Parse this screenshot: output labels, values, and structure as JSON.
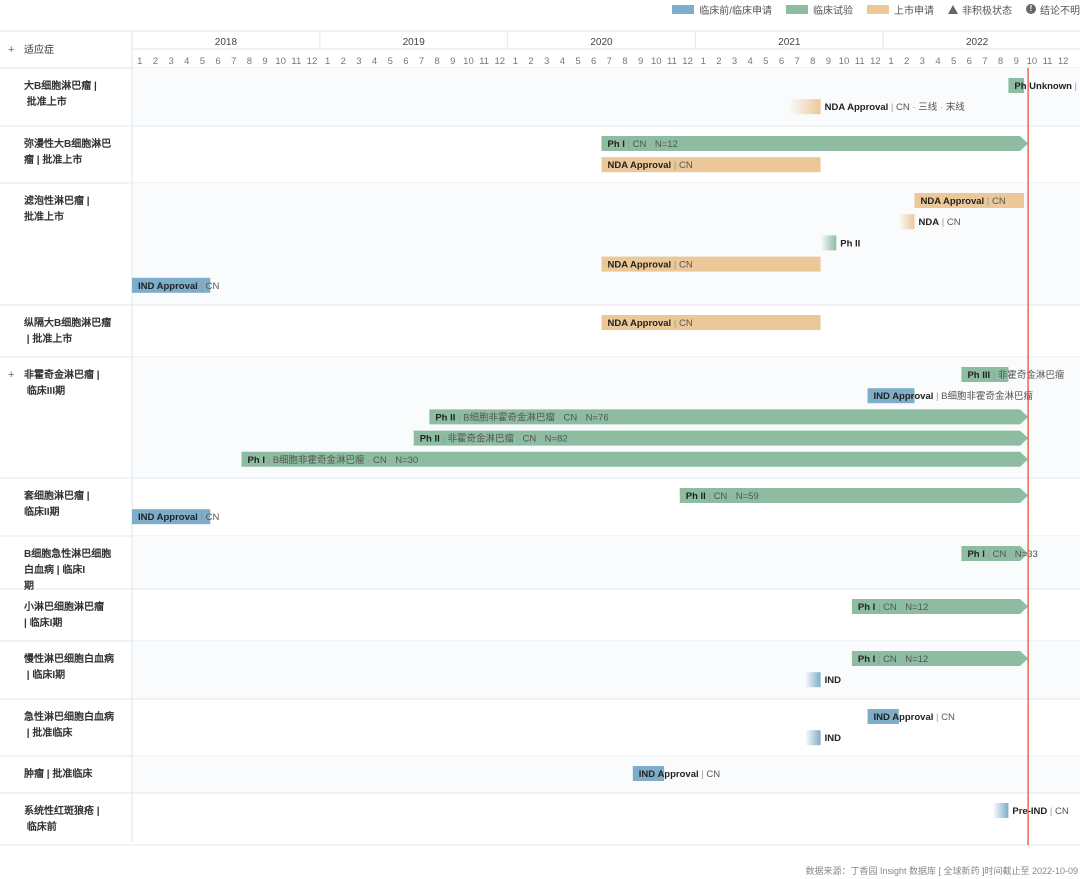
{
  "legend": {
    "items": [
      {
        "label": "临床前/临床申请",
        "color": "#7eadc9",
        "kind": "swatch"
      },
      {
        "label": "临床试验",
        "color": "#8dbca0",
        "kind": "swatch"
      },
      {
        "label": "上市申请",
        "color": "#ecc898",
        "kind": "swatch"
      },
      {
        "label": "非积极状态",
        "kind": "triangle"
      },
      {
        "label": "结论不明",
        "kind": "circle",
        "glyph": "!"
      }
    ]
  },
  "header": {
    "expand_glyph": "+",
    "indication_label": "适应症"
  },
  "footer": {
    "source_text": "数据来源：丁香园 Insight 数据库 [ 全球新药 ]时间截止至 2022-10-09"
  },
  "chart_data": {
    "type": "gantt",
    "years": [
      "2018",
      "2019",
      "2020",
      "2021",
      "2022"
    ],
    "month_ticks": [
      "1",
      "2",
      "3",
      "4",
      "5",
      "6",
      "7",
      "8",
      "9",
      "10",
      "11",
      "12"
    ],
    "start": "2018-01",
    "end": "2022-12",
    "current_date": "2022-10-09",
    "colors": {
      "preclinical": "#7eadc9",
      "clinical": "#8dbca0",
      "approval": "#ecc898",
      "today_line": "#e8553a"
    },
    "rows": [
      {
        "indication": "大B细胞淋巴瘤 | 批准上市",
        "expand": false,
        "bars": [
          {
            "category": "clinical",
            "start": "2022-09",
            "end": "2022-10",
            "arrow": false,
            "phase": "Ph Unknown",
            "details": [
              "|"
            ]
          },
          {
            "category": "approval",
            "start": "2021-07",
            "end": "2021-09",
            "arrow": false,
            "fade": true,
            "phase": "NDA Approval",
            "details": [
              "CN",
              "三线",
              "末线"
            ]
          }
        ]
      },
      {
        "indication": "弥漫性大B细胞淋巴瘤 | 批准上市",
        "expand": false,
        "bars": [
          {
            "category": "clinical",
            "start": "2020-07",
            "end": "2022-10",
            "arrow": true,
            "phase": "Ph I",
            "details": [
              "CN",
              "N=12"
            ]
          },
          {
            "category": "approval",
            "start": "2020-07",
            "end": "2021-09",
            "arrow": false,
            "phase": "NDA Approval",
            "details": [
              "CN"
            ]
          }
        ]
      },
      {
        "indication": "滤泡性淋巴瘤 | 批准上市",
        "expand": false,
        "bars": [
          {
            "category": "approval",
            "start": "2022-03",
            "end": "2022-10",
            "arrow": false,
            "phase": "NDA Approval",
            "details": [
              "CN"
            ]
          },
          {
            "category": "approval",
            "start": "2022-02",
            "end": "2022-03",
            "arrow": false,
            "fade": true,
            "phase": "NDA",
            "details": [
              "CN"
            ]
          },
          {
            "category": "clinical",
            "start": "2021-09",
            "end": "2021-10",
            "arrow": false,
            "fade": true,
            "phase": "Ph II",
            "details": []
          },
          {
            "category": "approval",
            "start": "2020-07",
            "end": "2021-09",
            "arrow": false,
            "phase": "NDA Approval",
            "details": [
              "CN"
            ]
          },
          {
            "category": "preclinical",
            "start": "2018-01",
            "end": "2018-06",
            "arrow": false,
            "phase": "IND Approval",
            "details": [
              "CN"
            ]
          }
        ]
      },
      {
        "indication": "纵隔大B细胞淋巴瘤 | 批准上市",
        "expand": false,
        "bars": [
          {
            "category": "approval",
            "start": "2020-07",
            "end": "2021-09",
            "arrow": false,
            "phase": "NDA Approval",
            "details": [
              "CN"
            ]
          }
        ]
      },
      {
        "indication": "非霍奇金淋巴瘤 | 临床III期",
        "expand": true,
        "bars": [
          {
            "category": "clinical",
            "start": "2022-06",
            "end": "2022-09",
            "arrow": false,
            "phase": "Ph III",
            "details": [
              "非霍奇金淋巴瘤"
            ]
          },
          {
            "category": "preclinical",
            "start": "2021-12",
            "end": "2022-03",
            "arrow": false,
            "phase": "IND Approval",
            "details": [
              "B细胞非霍奇金淋巴瘤"
            ]
          },
          {
            "category": "clinical",
            "start": "2019-08",
            "end": "2022-10",
            "arrow": true,
            "phase": "Ph II",
            "details": [
              "B细胞非霍奇金淋巴瘤",
              "CN",
              "N=76"
            ]
          },
          {
            "category": "clinical",
            "start": "2019-07",
            "end": "2022-10",
            "arrow": true,
            "phase": "Ph II",
            "details": [
              "非霍奇金淋巴瘤",
              "CN",
              "N=82"
            ]
          },
          {
            "category": "clinical",
            "start": "2018-08",
            "end": "2022-10",
            "arrow": true,
            "phase": "Ph I",
            "details": [
              "B细胞非霍奇金淋巴瘤",
              "CN",
              "N=30"
            ]
          }
        ]
      },
      {
        "indication": "套细胞淋巴瘤 | 临床II期",
        "expand": false,
        "bars": [
          {
            "category": "clinical",
            "start": "2020-12",
            "end": "2022-10",
            "arrow": true,
            "phase": "Ph II",
            "details": [
              "CN",
              "N=59"
            ]
          },
          {
            "category": "preclinical",
            "start": "2018-01",
            "end": "2018-06",
            "arrow": false,
            "phase": "IND Approval",
            "details": [
              "CN"
            ]
          }
        ]
      },
      {
        "indication": "B细胞急性淋巴细胞白血病 | 临床I期",
        "expand": false,
        "bars": [
          {
            "category": "clinical",
            "start": "2022-06",
            "end": "2022-10",
            "arrow": true,
            "phase": "Ph I",
            "details": [
              "CN",
              "N=33"
            ]
          }
        ]
      },
      {
        "indication": "小淋巴细胞淋巴瘤 | 临床I期",
        "expand": false,
        "bars": [
          {
            "category": "clinical",
            "start": "2021-11",
            "end": "2022-10",
            "arrow": true,
            "phase": "Ph I",
            "details": [
              "CN",
              "N=12"
            ]
          }
        ]
      },
      {
        "indication": "慢性淋巴细胞白血病 | 临床I期",
        "expand": false,
        "bars": [
          {
            "category": "clinical",
            "start": "2021-11",
            "end": "2022-10",
            "arrow": true,
            "phase": "Ph I",
            "details": [
              "CN",
              "N=12"
            ]
          },
          {
            "category": "preclinical",
            "start": "2021-08",
            "end": "2021-09",
            "arrow": false,
            "fade": true,
            "phase": "IND",
            "details": []
          }
        ]
      },
      {
        "indication": "急性淋巴细胞白血病 | 批准临床",
        "expand": false,
        "bars": [
          {
            "category": "preclinical",
            "start": "2021-12",
            "end": "2022-02",
            "arrow": false,
            "phase": "IND Approval",
            "details": [
              "CN"
            ]
          },
          {
            "category": "preclinical",
            "start": "2021-08",
            "end": "2021-09",
            "arrow": false,
            "fade": true,
            "phase": "IND",
            "details": []
          }
        ]
      },
      {
        "indication": "肿瘤 | 批准临床",
        "expand": false,
        "bars": [
          {
            "category": "preclinical",
            "start": "2020-09",
            "end": "2020-11",
            "arrow": false,
            "phase": "IND Approval",
            "details": [
              "CN"
            ]
          }
        ]
      },
      {
        "indication": "系统性红斑狼疮 | 临床前",
        "expand": false,
        "bars": [
          {
            "category": "preclinical",
            "start": "2022-08",
            "end": "2022-09",
            "arrow": false,
            "fade": true,
            "phase": "Pre-IND",
            "details": [
              "CN"
            ]
          }
        ]
      }
    ]
  }
}
